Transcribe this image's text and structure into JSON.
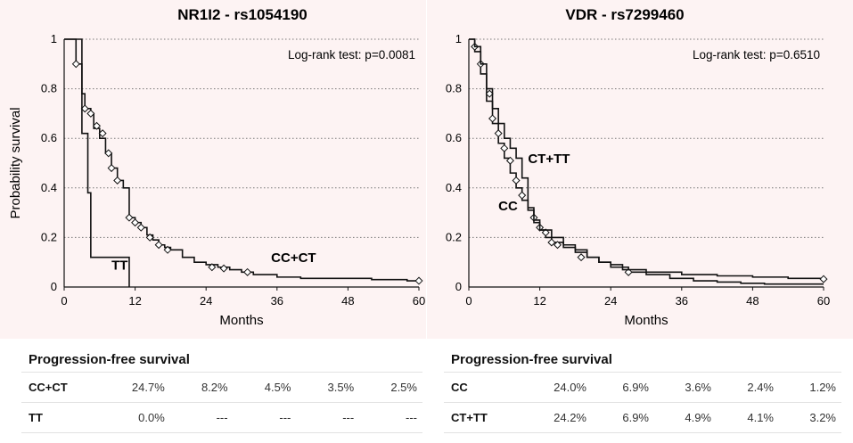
{
  "chart_data": [
    {
      "type": "line",
      "title": "NR1I2 - rs1054190",
      "xlabel": "Months",
      "ylabel": "Probability survival",
      "xlim": [
        0,
        60
      ],
      "ylim": [
        0,
        1
      ],
      "xticks": [
        0,
        12,
        24,
        36,
        48,
        60
      ],
      "yticks": [
        0,
        0.2,
        0.4,
        0.6,
        0.8,
        1
      ],
      "yticklabels": [
        "0",
        "0.2",
        "0.4",
        "0.6",
        "0.8",
        "1"
      ],
      "grid": "horizontal dotted",
      "annotation": "Log-rank test: p=0.0081",
      "series": [
        {
          "name": "CC+CT",
          "x": [
            0,
            2,
            3,
            3.5,
            4.5,
            5,
            6,
            7,
            8,
            9,
            10,
            11,
            12,
            13,
            14,
            15,
            16,
            17,
            18,
            20,
            22,
            24,
            26,
            28,
            30,
            32,
            36,
            40,
            44,
            48,
            52,
            56,
            58,
            60
          ],
          "y": [
            1,
            0.9,
            0.78,
            0.72,
            0.7,
            0.64,
            0.6,
            0.54,
            0.48,
            0.43,
            0.4,
            0.28,
            0.26,
            0.24,
            0.21,
            0.19,
            0.17,
            0.16,
            0.15,
            0.12,
            0.1,
            0.09,
            0.08,
            0.07,
            0.06,
            0.05,
            0.04,
            0.035,
            0.035,
            0.035,
            0.03,
            0.03,
            0.025,
            0.025
          ],
          "censored_x": [
            2,
            3.5,
            4.5,
            5.5,
            6.5,
            7.5,
            8,
            9,
            11,
            12,
            13,
            14.5,
            16,
            17.5,
            25,
            27,
            31,
            60
          ],
          "censored_y": [
            0.9,
            0.72,
            0.7,
            0.65,
            0.62,
            0.54,
            0.48,
            0.43,
            0.28,
            0.26,
            0.24,
            0.2,
            0.17,
            0.15,
            0.08,
            0.075,
            0.06,
            0.025
          ],
          "label_x": 35,
          "label_y": 0.1
        },
        {
          "name": "TT",
          "x": [
            0,
            3,
            4,
            4.5,
            11,
            11
          ],
          "y": [
            1,
            0.62,
            0.38,
            0.12,
            0.12,
            0
          ],
          "censored_x": [],
          "censored_y": [],
          "label_x": 8,
          "label_y": 0.07
        }
      ]
    },
    {
      "type": "line",
      "title": "VDR - rs7299460",
      "xlabel": "Months",
      "ylabel": "",
      "xlim": [
        0,
        60
      ],
      "ylim": [
        0,
        1
      ],
      "xticks": [
        0,
        12,
        24,
        36,
        48,
        60
      ],
      "yticks": [
        0,
        0.2,
        0.4,
        0.6,
        0.8,
        1
      ],
      "yticklabels": [
        "0",
        "0.2",
        "0.4",
        "0.6",
        "0.8",
        "1"
      ],
      "grid": "horizontal dotted",
      "annotation": "Log-rank test: p=0.6510",
      "series": [
        {
          "name": "CC",
          "x": [
            0,
            1,
            2,
            3,
            4,
            5,
            6,
            7,
            8,
            9,
            10,
            11,
            12,
            13,
            14,
            16,
            18,
            20,
            22,
            24,
            27,
            30,
            34,
            38,
            42,
            46,
            50,
            55,
            60
          ],
          "y": [
            1,
            0.95,
            0.86,
            0.75,
            0.66,
            0.58,
            0.52,
            0.46,
            0.4,
            0.35,
            0.31,
            0.27,
            0.23,
            0.2,
            0.18,
            0.16,
            0.14,
            0.12,
            0.1,
            0.08,
            0.06,
            0.05,
            0.035,
            0.025,
            0.02,
            0.015,
            0.012,
            0.012,
            0.012
          ],
          "censored_x": [
            1,
            2,
            3.5,
            4,
            5,
            6,
            7,
            8,
            9,
            11,
            12,
            13,
            14,
            15,
            19,
            27
          ],
          "censored_y": [
            0.97,
            0.9,
            0.78,
            0.68,
            0.62,
            0.56,
            0.51,
            0.43,
            0.37,
            0.28,
            0.24,
            0.22,
            0.18,
            0.17,
            0.12,
            0.06
          ],
          "label_x": 5,
          "label_y": 0.31
        },
        {
          "name": "CT+TT",
          "x": [
            0,
            1,
            2,
            3,
            4,
            5,
            6,
            7,
            8,
            9,
            10,
            11,
            12,
            14,
            16,
            18,
            20,
            22,
            24,
            26,
            30,
            36,
            42,
            48,
            54,
            60
          ],
          "y": [
            1,
            0.97,
            0.9,
            0.8,
            0.72,
            0.66,
            0.6,
            0.56,
            0.52,
            0.44,
            0.32,
            0.26,
            0.23,
            0.2,
            0.17,
            0.15,
            0.12,
            0.1,
            0.09,
            0.07,
            0.06,
            0.05,
            0.045,
            0.04,
            0.035,
            0.032
          ],
          "censored_x": [
            60
          ],
          "censored_y": [
            0.032
          ],
          "label_x": 10,
          "label_y": 0.5
        }
      ]
    }
  ],
  "tables": [
    {
      "title": "Progression-free survival",
      "rows": [
        {
          "group": "CC+CT",
          "cells": [
            "24.7%",
            "8.2%",
            "4.5%",
            "3.5%",
            "2.5%"
          ]
        },
        {
          "group": "TT",
          "cells": [
            "0.0%",
            "---",
            "---",
            "---",
            "---"
          ]
        }
      ]
    },
    {
      "title": "Progression-free survival",
      "rows": [
        {
          "group": "CC",
          "cells": [
            "24.0%",
            "6.9%",
            "3.6%",
            "2.4%",
            "1.2%"
          ]
        },
        {
          "group": "CT+TT",
          "cells": [
            "24.2%",
            "6.9%",
            "4.9%",
            "4.1%",
            "3.2%"
          ]
        }
      ]
    }
  ],
  "colors": {
    "plot_background": "#fdf3f3",
    "line": "#111111",
    "grid": "#777777",
    "marker_fill": "#ffffff"
  }
}
